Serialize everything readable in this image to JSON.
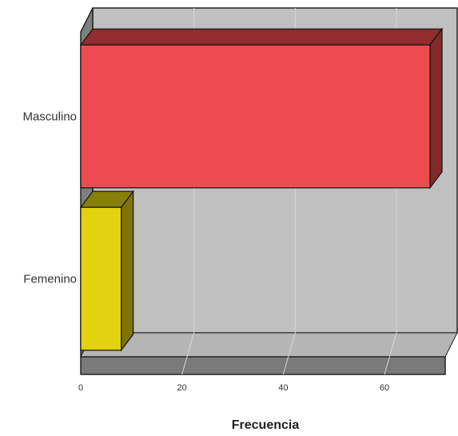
{
  "chart_data": {
    "type": "bar",
    "orientation": "horizontal",
    "three_d": true,
    "categories": [
      "Masculino",
      "Femenino"
    ],
    "values": [
      69,
      8
    ],
    "xlabel": "Frecuencia",
    "ylabel": "",
    "xlim": [
      0,
      72
    ],
    "xticks": [
      0,
      20,
      40,
      60
    ],
    "grid": true,
    "colors": {
      "Masculino": "#ee4b4f",
      "Femenino": "#e3d30e"
    },
    "wall_color": "#c0c0c0",
    "floor_color": "#7a7a7a"
  }
}
